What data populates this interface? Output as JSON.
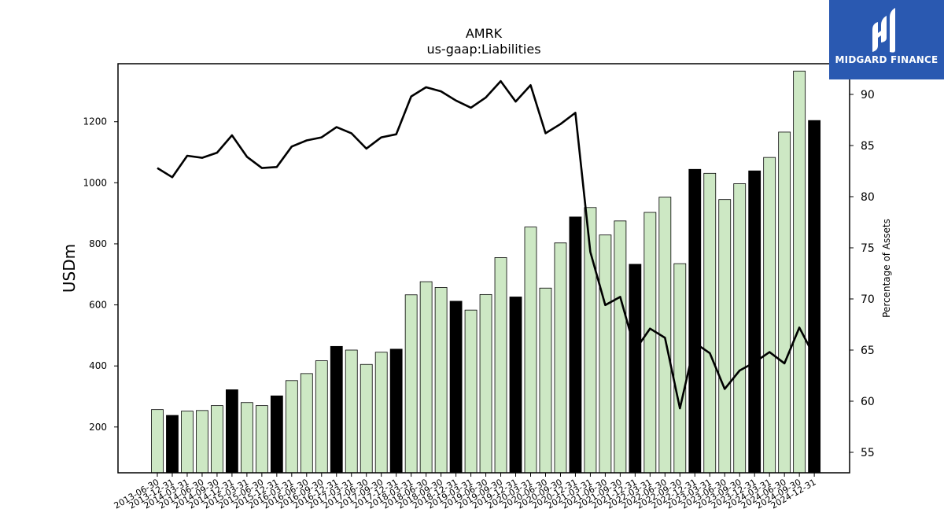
{
  "chart_data": {
    "type": "bar",
    "title": "AMRK",
    "subtitle": "us-gaap:Liabilities",
    "ylabel": "USDm",
    "y2label": "Percentage of Assets",
    "ylim": [
      50,
      1390
    ],
    "y2lim": [
      53,
      93
    ],
    "yticks": [
      200,
      400,
      600,
      800,
      1000,
      1200
    ],
    "y2ticks": [
      55,
      60,
      65,
      70,
      75,
      80,
      85,
      90
    ],
    "grid": false,
    "colors": {
      "annual_bar": "#000000",
      "quarter_bar": "#cde8c4",
      "bar_edge": "#000000",
      "line": "#000000"
    },
    "categories": [
      "2013-06-30",
      "2013-12-31",
      "2014-03-31",
      "2014-06-30",
      "2014-09-30",
      "2014-12-31",
      "2015-03-31",
      "2015-06-30",
      "2015-12-31",
      "2016-03-31",
      "2016-06-30",
      "2016-09-30",
      "2016-12-31",
      "2017-03-31",
      "2017-06-30",
      "2017-09-30",
      "2017-12-31",
      "2018-03-31",
      "2018-06-30",
      "2018-09-30",
      "2018-12-31",
      "2019-03-31",
      "2019-06-30",
      "2019-09-30",
      "2019-12-31",
      "2020-03-31",
      "2020-06-30",
      "2020-09-30",
      "2020-12-31",
      "2021-03-31",
      "2021-06-30",
      "2021-09-30",
      "2021-12-31",
      "2022-03-31",
      "2022-06-30",
      "2022-09-30",
      "2022-12-31",
      "2023-03-31",
      "2023-06-30",
      "2023-09-30",
      "2023-12-31",
      "2024-03-31",
      "2024-06-30",
      "2024-09-30",
      "2024-12-31"
    ],
    "series": [
      {
        "kind": "bar",
        "values": [
          257,
          238,
          252,
          254,
          270,
          322,
          280,
          270,
          302,
          352,
          375,
          417,
          464,
          452,
          405,
          445,
          455,
          633,
          676,
          657,
          612,
          583,
          634,
          755,
          626,
          855,
          655,
          803,
          888,
          919,
          829,
          875,
          733,
          903,
          953,
          735,
          1044,
          1031,
          945,
          997,
          1039,
          1083,
          1166,
          1366,
          1204
        ],
        "highlight": [
          false,
          true,
          false,
          false,
          false,
          true,
          false,
          false,
          true,
          false,
          false,
          false,
          true,
          false,
          false,
          false,
          true,
          false,
          false,
          false,
          true,
          false,
          false,
          false,
          true,
          false,
          false,
          false,
          true,
          false,
          false,
          false,
          true,
          false,
          false,
          false,
          true,
          false,
          false,
          false,
          true,
          false,
          false,
          false,
          true
        ]
      },
      {
        "kind": "line",
        "axis": "right",
        "values": [
          82.8,
          81.9,
          84.0,
          83.8,
          84.3,
          86.0,
          83.9,
          82.8,
          82.9,
          84.9,
          85.5,
          85.8,
          86.8,
          86.2,
          84.7,
          85.8,
          86.1,
          89.8,
          90.7,
          90.3,
          89.4,
          88.7,
          89.7,
          91.3,
          89.3,
          90.9,
          86.2,
          87.1,
          88.2,
          74.6,
          69.4,
          70.2,
          65.0,
          67.1,
          66.2,
          59.3,
          65.7,
          64.7,
          61.2,
          63.0,
          63.8,
          64.8,
          63.7,
          67.2,
          64.4
        ]
      }
    ]
  },
  "logo": {
    "text": "MIDGARD FINANCE",
    "icon": "midgard-logo-icon"
  }
}
